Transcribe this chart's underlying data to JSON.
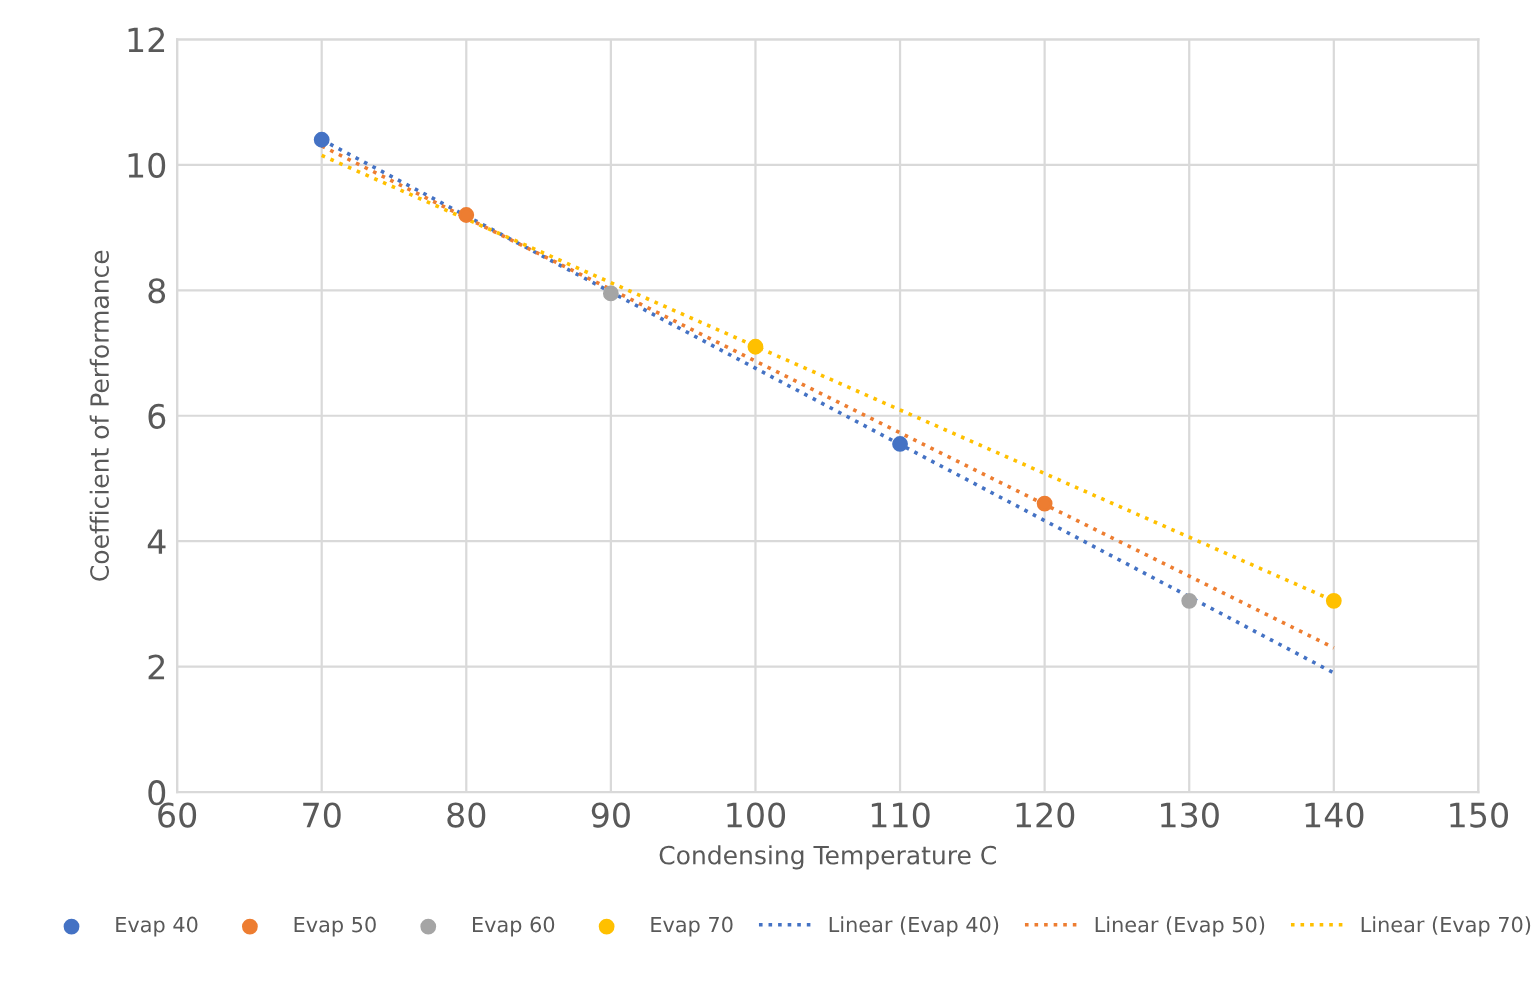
{
  "chart_data": {
    "type": "scatter",
    "xlabel": "Condensing Temperature C",
    "ylabel": "Coefficient of Performance",
    "xlim": [
      60,
      150
    ],
    "xticks": [
      60,
      70,
      80,
      90,
      100,
      110,
      120,
      130,
      140,
      150
    ],
    "ylim": [
      0,
      12
    ],
    "yticks": [
      0,
      2,
      4,
      6,
      8,
      10,
      12
    ],
    "grid": true,
    "legend": "bottom",
    "marker": "circle",
    "series": [
      {
        "name": "Evap 40",
        "color": "#4472c4",
        "x": [
          70,
          110
        ],
        "values": [
          10.4,
          5.55
        ]
      },
      {
        "name": "Evap 50",
        "color": "#ed7d31",
        "x": [
          80,
          120
        ],
        "values": [
          9.2,
          4.6
        ]
      },
      {
        "name": "Evap 60",
        "color": "#a5a5a5",
        "x": [
          90,
          130
        ],
        "values": [
          7.95,
          3.05
        ]
      },
      {
        "name": "Evap 70",
        "color": "#ffc000",
        "x": [
          100,
          140
        ],
        "values": [
          7.1,
          3.05
        ]
      },
      {
        "name": "Linear (Evap 40)",
        "type": "line",
        "line_style": "dotted",
        "marker": "none",
        "color": "#4472c4",
        "x": [
          70,
          140
        ],
        "values": [
          10.4,
          1.9
        ]
      },
      {
        "name": "Linear (Evap 50)",
        "type": "line",
        "line_style": "dotted",
        "marker": "none",
        "color": "#ed7d31",
        "x": [
          70,
          140
        ],
        "values": [
          10.3,
          2.3
        ]
      },
      {
        "name": "Linear (Evap 70)",
        "type": "line",
        "line_style": "dotted",
        "marker": "none",
        "color": "#ffc000",
        "x": [
          70,
          140
        ],
        "values": [
          10.15,
          3.05
        ]
      }
    ]
  }
}
